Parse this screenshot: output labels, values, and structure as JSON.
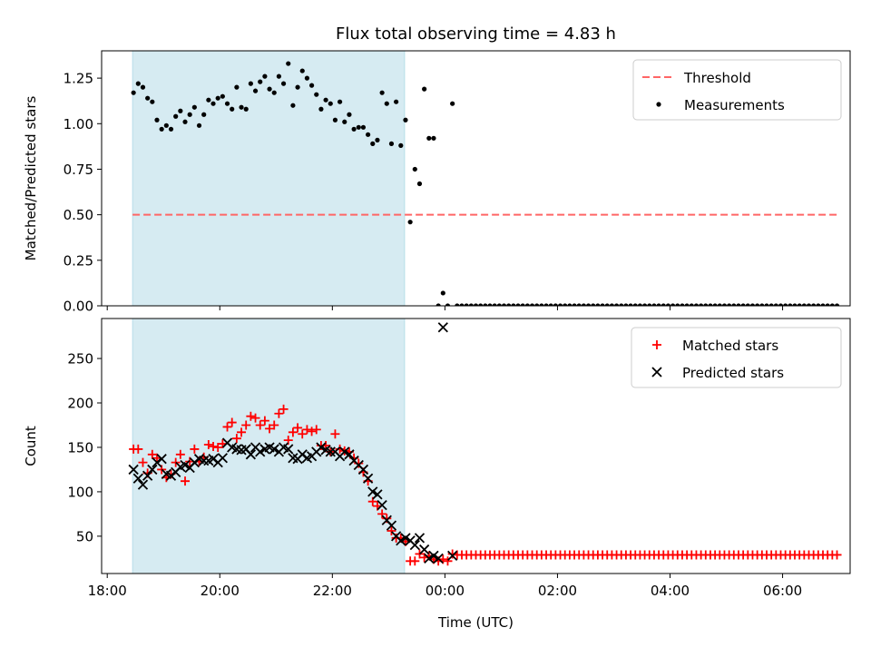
{
  "chart_data": [
    {
      "type": "scatter",
      "title": "Flux total observing time = 4.83 h",
      "ylabel": "Matched/Predicted stars",
      "ylim": [
        0,
        1.4
      ],
      "xlim_hours": [
        17.9,
        31.2
      ],
      "yticks": [
        0.0,
        0.25,
        0.5,
        0.75,
        1.0,
        1.25
      ],
      "ytick_labels": [
        "0.00",
        "0.25",
        "0.50",
        "0.75",
        "1.00",
        "1.25"
      ],
      "shaded_region": {
        "start": "18:27",
        "end": "23:17",
        "color": "#add8e6"
      },
      "threshold": {
        "name": "Threshold",
        "value": 0.5,
        "start": "18:27",
        "end": "07:00",
        "color": "#ff6666"
      },
      "legend": {
        "placement": "top-right",
        "entries": [
          "Threshold",
          "Measurements"
        ]
      },
      "series": [
        {
          "name": "Measurements",
          "marker": "dot",
          "color": "#000000",
          "x": [
            "18:28",
            "18:33",
            "18:38",
            "18:43",
            "18:48",
            "18:53",
            "18:58",
            "19:03",
            "19:08",
            "19:13",
            "19:18",
            "19:23",
            "19:28",
            "19:33",
            "19:38",
            "19:43",
            "19:48",
            "19:53",
            "19:58",
            "20:03",
            "20:08",
            "20:13",
            "20:18",
            "20:23",
            "20:28",
            "20:33",
            "20:38",
            "20:43",
            "20:48",
            "20:53",
            "20:58",
            "21:03",
            "21:08",
            "21:13",
            "21:18",
            "21:23",
            "21:28",
            "21:33",
            "21:38",
            "21:43",
            "21:48",
            "21:53",
            "21:58",
            "22:03",
            "22:08",
            "22:13",
            "22:18",
            "22:23",
            "22:28",
            "22:33",
            "22:38",
            "22:43",
            "22:48",
            "22:53",
            "22:58",
            "23:03",
            "23:08",
            "23:13",
            "23:18",
            "23:23",
            "23:28",
            "23:33",
            "23:38",
            "23:43",
            "23:48",
            "23:53",
            "23:58",
            "00:03",
            "00:08"
          ],
          "y": [
            1.17,
            1.22,
            1.2,
            1.14,
            1.12,
            1.02,
            0.97,
            0.99,
            0.97,
            1.04,
            1.07,
            1.01,
            1.05,
            1.09,
            0.99,
            1.05,
            1.13,
            1.11,
            1.14,
            1.15,
            1.11,
            1.08,
            1.2,
            1.09,
            1.08,
            1.22,
            1.18,
            1.23,
            1.26,
            1.19,
            1.17,
            1.26,
            1.22,
            1.33,
            1.1,
            1.2,
            1.29,
            1.25,
            1.21,
            1.16,
            1.08,
            1.13,
            1.11,
            1.02,
            1.12,
            1.01,
            1.05,
            0.97,
            0.98,
            0.98,
            0.94,
            0.89,
            0.91,
            1.17,
            1.11,
            0.89,
            1.12,
            0.88,
            1.02,
            0.46,
            0.75,
            0.67,
            1.19,
            0.92,
            0.92,
            0.0,
            0.07,
            0.0,
            1.11
          ]
        },
        {
          "name": "Measurements (zero run)",
          "marker": "dot",
          "color": "#000000",
          "x_range": [
            "00:13",
            "07:00"
          ],
          "step_minutes": 5,
          "y_constant": 0.0
        }
      ]
    },
    {
      "type": "scatter",
      "xlabel": "Time (UTC)",
      "ylabel": "Count",
      "ylim": [
        8,
        295
      ],
      "xlim_hours": [
        17.9,
        31.2
      ],
      "yticks": [
        50,
        100,
        150,
        200,
        250
      ],
      "ytick_labels": [
        "50",
        "100",
        "150",
        "200",
        "250"
      ],
      "xticks": [
        "18:00",
        "20:00",
        "22:00",
        "00:00",
        "02:00",
        "04:00",
        "06:00"
      ],
      "shaded_region": {
        "start": "18:27",
        "end": "23:17",
        "color": "#add8e6"
      },
      "legend": {
        "placement": "top-right",
        "entries": [
          "Matched stars",
          "Predicted stars"
        ]
      },
      "series": [
        {
          "name": "Matched stars",
          "marker": "plus",
          "color": "#ff0000",
          "x": [
            "18:28",
            "18:33",
            "18:38",
            "18:43",
            "18:48",
            "18:53",
            "18:58",
            "19:03",
            "19:08",
            "19:13",
            "19:18",
            "19:23",
            "19:28",
            "19:33",
            "19:38",
            "19:43",
            "19:48",
            "19:53",
            "19:58",
            "20:03",
            "20:08",
            "20:13",
            "20:18",
            "20:23",
            "20:28",
            "20:33",
            "20:38",
            "20:43",
            "20:48",
            "20:53",
            "20:58",
            "21:03",
            "21:08",
            "21:13",
            "21:18",
            "21:23",
            "21:28",
            "21:33",
            "21:38",
            "21:43",
            "21:48",
            "21:53",
            "21:58",
            "22:03",
            "22:08",
            "22:13",
            "22:18",
            "22:23",
            "22:28",
            "22:33",
            "22:38",
            "22:43",
            "22:48",
            "22:53",
            "22:58",
            "23:03",
            "23:08",
            "23:13",
            "23:18",
            "23:23",
            "23:28",
            "23:33",
            "23:38",
            "23:43",
            "23:48",
            "23:53",
            "23:58",
            "00:03",
            "00:08"
          ],
          "y": [
            148,
            148,
            133,
            121,
            142,
            138,
            125,
            116,
            120,
            133,
            142,
            112,
            134,
            148,
            134,
            139,
            153,
            151,
            150,
            154,
            173,
            178,
            160,
            167,
            175,
            185,
            183,
            175,
            180,
            171,
            175,
            188,
            193,
            158,
            167,
            172,
            165,
            170,
            168,
            170,
            152,
            152,
            145,
            165,
            148,
            146,
            145,
            138,
            132,
            122,
            112,
            89,
            84,
            75,
            70,
            56,
            48,
            48,
            44,
            22,
            22,
            30,
            26,
            28,
            24,
            22,
            24,
            22,
            30
          ]
        },
        {
          "name": "Matched stars (constant run)",
          "marker": "plus",
          "color": "#ff0000",
          "x_range": [
            "00:13",
            "07:00"
          ],
          "step_minutes": 5,
          "y_constant": 29
        },
        {
          "name": "Predicted stars",
          "marker": "x",
          "color": "#000000",
          "x": [
            "18:28",
            "18:33",
            "18:38",
            "18:43",
            "18:48",
            "18:53",
            "18:58",
            "19:03",
            "19:08",
            "19:13",
            "19:18",
            "19:23",
            "19:28",
            "19:33",
            "19:38",
            "19:43",
            "19:48",
            "19:53",
            "19:58",
            "20:03",
            "20:08",
            "20:13",
            "20:18",
            "20:23",
            "20:28",
            "20:33",
            "20:38",
            "20:43",
            "20:48",
            "20:53",
            "20:58",
            "21:03",
            "21:08",
            "21:13",
            "21:18",
            "21:23",
            "21:28",
            "21:33",
            "21:38",
            "21:43",
            "21:48",
            "21:53",
            "21:58",
            "22:03",
            "22:08",
            "22:13",
            "22:18",
            "22:23",
            "22:28",
            "22:33",
            "22:38",
            "22:43",
            "22:48",
            "22:53",
            "22:58",
            "23:03",
            "23:08",
            "23:13",
            "23:18",
            "23:23",
            "23:28",
            "23:33",
            "23:38",
            "23:43",
            "23:48",
            "23:53",
            "23:58",
            "00:08"
          ],
          "y": [
            125,
            115,
            108,
            118,
            125,
            133,
            137,
            120,
            118,
            122,
            128,
            130,
            127,
            133,
            137,
            135,
            135,
            137,
            133,
            138,
            155,
            150,
            148,
            147,
            148,
            142,
            150,
            145,
            148,
            150,
            148,
            145,
            150,
            148,
            138,
            137,
            142,
            138,
            140,
            145,
            150,
            147,
            145,
            145,
            140,
            145,
            142,
            135,
            130,
            125,
            115,
            100,
            97,
            85,
            68,
            62,
            50,
            45,
            48,
            45,
            40,
            48,
            35,
            25,
            28,
            25,
            285,
            28
          ]
        }
      ]
    }
  ]
}
